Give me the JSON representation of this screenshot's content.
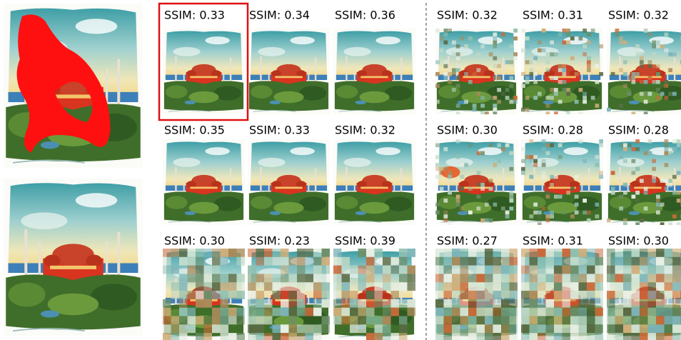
{
  "left_grid": {
    "rows": [
      [
        "SSIM: 0.33",
        "SSIM: 0.34",
        "SSIM: 0.36"
      ],
      [
        "SSIM: 0.35",
        "SSIM: 0.33",
        "SSIM: 0.32"
      ],
      [
        "SSIM: 0.30",
        "SSIM: 0.23",
        "SSIM: 0.39"
      ]
    ]
  },
  "right_grid": {
    "rows": [
      [
        "SSIM: 0.32",
        "SSIM: 0.31",
        "SSIM: 0.32"
      ],
      [
        "SSIM: 0.30",
        "SSIM: 0.28",
        "SSIM: 0.28"
      ],
      [
        "SSIM: 0.27",
        "SSIM: 0.31",
        "SSIM: 0.30"
      ]
    ]
  }
}
